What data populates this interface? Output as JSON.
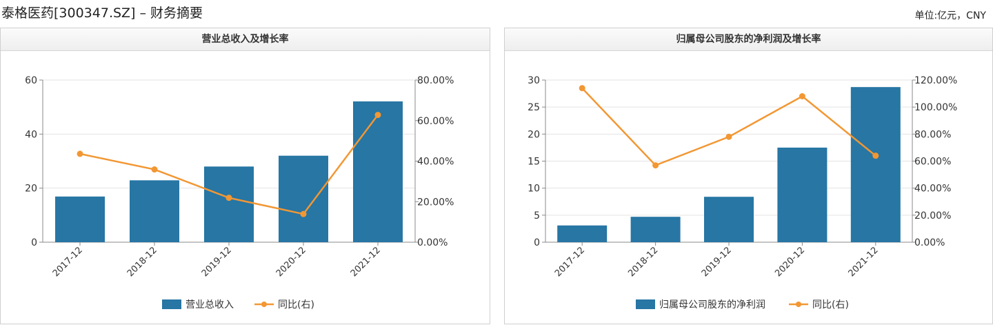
{
  "header": {
    "title": "泰格医药[300347.SZ] – 财务摘要",
    "unit": "单位:亿元，CNY"
  },
  "colors": {
    "bar": "#2776a4",
    "line": "#f29733",
    "grid": "#e3e3e3",
    "axis": "#888888"
  },
  "chart_data": [
    {
      "type": "bar",
      "title": "营业总收入及增长率",
      "categories": [
        "2017-12",
        "2018-12",
        "2019-12",
        "2020-12",
        "2021-12"
      ],
      "series": [
        {
          "name": "营业总收入",
          "type": "bar",
          "axis": "left",
          "values": [
            16.9,
            22.9,
            28.0,
            32.0,
            52.1
          ]
        },
        {
          "name": "同比(右)",
          "type": "line",
          "axis": "right",
          "values": [
            43.6,
            35.9,
            21.9,
            13.9,
            62.8
          ]
        }
      ],
      "y_left": {
        "min": 0,
        "max": 60,
        "ticks": [
          "0",
          "20",
          "40",
          "60"
        ]
      },
      "y_right": {
        "min": 0,
        "max": 80,
        "ticks": [
          "0.00%",
          "20.00%",
          "40.00%",
          "60.00%",
          "80.00%"
        ]
      },
      "grid": true,
      "legend_position": "bottom"
    },
    {
      "type": "bar",
      "title": "归属母公司股东的净利润及增长率",
      "categories": [
        "2017-12",
        "2018-12",
        "2019-12",
        "2020-12",
        "2021-12"
      ],
      "series": [
        {
          "name": "归属母公司股东的净利润",
          "type": "bar",
          "axis": "left",
          "values": [
            3.1,
            4.7,
            8.4,
            17.5,
            28.7
          ]
        },
        {
          "name": "同比(右)",
          "type": "line",
          "axis": "right",
          "values": [
            114.0,
            56.9,
            78.0,
            108.0,
            64.0
          ]
        }
      ],
      "y_left": {
        "min": 0,
        "max": 30,
        "ticks": [
          "0",
          "5",
          "10",
          "15",
          "20",
          "25",
          "30"
        ]
      },
      "y_right": {
        "min": 0,
        "max": 120,
        "ticks": [
          "0.00%",
          "20.00%",
          "40.00%",
          "60.00%",
          "80.00%",
          "100.00%",
          "120.00%"
        ]
      },
      "grid": true,
      "legend_position": "bottom"
    }
  ]
}
